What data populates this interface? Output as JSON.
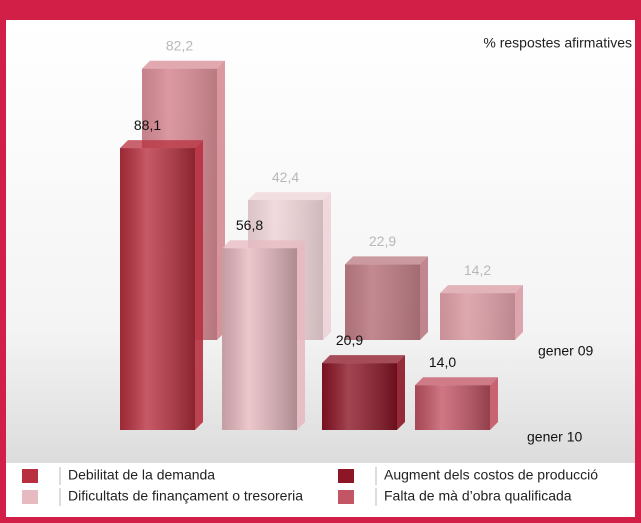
{
  "chart_data": {
    "type": "bar3d",
    "title": "% respostes afirmatives",
    "categories": [
      "Debilitat de la demanda",
      "Dificultats de finançament o tresoreria",
      "Augment dels costos de producció",
      "Falta de mà d’obra qualificada"
    ],
    "colors": [
      "#b8303f",
      "#e7b9c0",
      "#8c1526",
      "#c45565"
    ],
    "series": [
      {
        "name": "gener 09",
        "values": [
          82.2,
          42.4,
          22.9,
          14.2
        ],
        "value_labels": [
          "82,2",
          "42,4",
          "22,9",
          "14,2"
        ]
      },
      {
        "name": "gener 10",
        "values": [
          88.1,
          56.8,
          20.9,
          14.0
        ],
        "value_labels": [
          "88,1",
          "56,8",
          "20,9",
          "14,0"
        ]
      }
    ]
  }
}
